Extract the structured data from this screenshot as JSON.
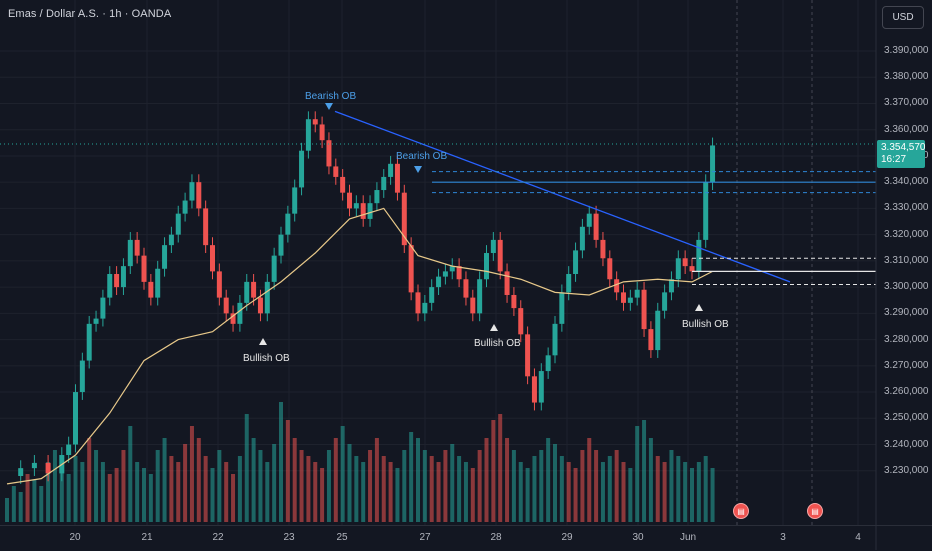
{
  "header": {
    "title": "Emas / Dollar A.S. · 1h · OANDA",
    "currency_button": "USD"
  },
  "price_tag": {
    "price": "3.354,570",
    "countdown": "16:27"
  },
  "annotations": {
    "bearish_ob_1": "Bearish OB",
    "bearish_ob_2": "Bearish OB",
    "bullish_ob_1": "Bullish OB",
    "bullish_ob_2": "Bullish OB",
    "bullish_ob_3": "Bullish OB"
  },
  "events": [
    "us-flag-icon",
    "us-flag-icon"
  ],
  "colors": {
    "up": "#26a69a",
    "down": "#ef5350",
    "trendline": "#2962ff",
    "ma": "#e8c98a",
    "background": "#131722"
  },
  "chart_data": {
    "type": "candlestick",
    "symbol": "XAUUSD",
    "interval": "1h",
    "y_ticks": [
      "3.390,000",
      "3.380,000",
      "3.370,000",
      "3.360,000",
      "3.350,000",
      "3.340,000",
      "3.330,000",
      "3.320,000",
      "3.310,000",
      "3.300,000",
      "3.290,000",
      "3.280,000",
      "3.270,000",
      "3.260,000",
      "3.250,000",
      "3.240,000",
      "3.230,000"
    ],
    "x_ticks": [
      "20",
      "21",
      "22",
      "23",
      "25",
      "27",
      "28",
      "29",
      "30",
      "Jun",
      "3",
      "4"
    ],
    "ylim": [
      3225,
      3395
    ],
    "close_path": [
      [
        0,
        3228
      ],
      [
        2,
        3231
      ],
      [
        4,
        3233
      ],
      [
        6,
        3229
      ],
      [
        8,
        3236
      ],
      [
        9,
        3240
      ],
      [
        10,
        3260
      ],
      [
        11,
        3272
      ],
      [
        12,
        3286
      ],
      [
        13,
        3288
      ],
      [
        14,
        3296
      ],
      [
        15,
        3305
      ],
      [
        16,
        3300
      ],
      [
        17,
        3308
      ],
      [
        18,
        3318
      ],
      [
        19,
        3312
      ],
      [
        20,
        3302
      ],
      [
        21,
        3296
      ],
      [
        22,
        3307
      ],
      [
        23,
        3316
      ],
      [
        24,
        3320
      ],
      [
        25,
        3328
      ],
      [
        26,
        3333
      ],
      [
        27,
        3340
      ],
      [
        28,
        3330
      ],
      [
        29,
        3316
      ],
      [
        30,
        3306
      ],
      [
        31,
        3296
      ],
      [
        32,
        3290
      ],
      [
        33,
        3286
      ],
      [
        34,
        3294
      ],
      [
        35,
        3302
      ],
      [
        36,
        3296
      ],
      [
        37,
        3290
      ],
      [
        38,
        3302
      ],
      [
        39,
        3312
      ],
      [
        40,
        3320
      ],
      [
        41,
        3328
      ],
      [
        42,
        3338
      ],
      [
        43,
        3352
      ],
      [
        44,
        3364
      ],
      [
        45,
        3362
      ],
      [
        46,
        3356
      ],
      [
        47,
        3346
      ],
      [
        48,
        3342
      ],
      [
        49,
        3336
      ],
      [
        50,
        3330
      ],
      [
        51,
        3332
      ],
      [
        52,
        3326
      ],
      [
        53,
        3332
      ],
      [
        54,
        3337
      ],
      [
        55,
        3342
      ],
      [
        56,
        3347
      ],
      [
        57,
        3336
      ],
      [
        58,
        3316
      ],
      [
        59,
        3298
      ],
      [
        60,
        3290
      ],
      [
        61,
        3294
      ],
      [
        62,
        3300
      ],
      [
        63,
        3304
      ],
      [
        64,
        3306
      ],
      [
        65,
        3308
      ],
      [
        66,
        3303
      ],
      [
        67,
        3296
      ],
      [
        68,
        3290
      ],
      [
        69,
        3303
      ],
      [
        70,
        3313
      ],
      [
        71,
        3318
      ],
      [
        72,
        3306
      ],
      [
        73,
        3297
      ],
      [
        74,
        3292
      ],
      [
        75,
        3282
      ],
      [
        76,
        3266
      ],
      [
        77,
        3256
      ],
      [
        78,
        3268
      ],
      [
        79,
        3274
      ],
      [
        80,
        3286
      ],
      [
        81,
        3298
      ],
      [
        82,
        3305
      ],
      [
        83,
        3314
      ],
      [
        84,
        3323
      ],
      [
        85,
        3328
      ],
      [
        86,
        3318
      ],
      [
        87,
        3311
      ],
      [
        88,
        3303
      ],
      [
        89,
        3298
      ],
      [
        90,
        3294
      ],
      [
        91,
        3296
      ],
      [
        92,
        3299
      ],
      [
        93,
        3284
      ],
      [
        94,
        3276
      ],
      [
        95,
        3291
      ],
      [
        96,
        3298
      ],
      [
        97,
        3303
      ],
      [
        98,
        3311
      ],
      [
        99,
        3308
      ],
      [
        100,
        3306
      ],
      [
        101,
        3318
      ],
      [
        102,
        3340
      ],
      [
        103,
        3354
      ]
    ],
    "ma_path": [
      [
        0,
        3225
      ],
      [
        5,
        3227
      ],
      [
        10,
        3236
      ],
      [
        15,
        3252
      ],
      [
        20,
        3272
      ],
      [
        25,
        3280
      ],
      [
        30,
        3283
      ],
      [
        35,
        3293
      ],
      [
        40,
        3302
      ],
      [
        45,
        3313
      ],
      [
        50,
        3326
      ],
      [
        55,
        3330
      ],
      [
        60,
        3312
      ],
      [
        65,
        3308
      ],
      [
        70,
        3306
      ],
      [
        75,
        3303
      ],
      [
        80,
        3298
      ],
      [
        85,
        3297
      ],
      [
        90,
        3302
      ],
      [
        95,
        3303
      ],
      [
        100,
        3302
      ],
      [
        103,
        3306
      ]
    ],
    "volume_relative": [
      0.2,
      0.3,
      0.25,
      0.4,
      0.35,
      0.3,
      0.5,
      0.6,
      0.45,
      0.4,
      0.55,
      0.5,
      0.7,
      0.6,
      0.5,
      0.4,
      0.45,
      0.6,
      0.8,
      0.5,
      0.45,
      0.4,
      0.6,
      0.7,
      0.55,
      0.5,
      0.65,
      0.8,
      0.7,
      0.55,
      0.45,
      0.6,
      0.5,
      0.4,
      0.55,
      0.9,
      0.7,
      0.6,
      0.5,
      0.65,
      1.0,
      0.85,
      0.7,
      0.6,
      0.55,
      0.5,
      0.45,
      0.6,
      0.7,
      0.8,
      0.65,
      0.55,
      0.5,
      0.6,
      0.7,
      0.55,
      0.5,
      0.45,
      0.6,
      0.75,
      0.7,
      0.6,
      0.55,
      0.5,
      0.6,
      0.65,
      0.55,
      0.5,
      0.45,
      0.6,
      0.7,
      0.85,
      0.9,
      0.7,
      0.6,
      0.5,
      0.45,
      0.55,
      0.6,
      0.7,
      0.65,
      0.55,
      0.5,
      0.45,
      0.6,
      0.7,
      0.6,
      0.5,
      0.55,
      0.6,
      0.5,
      0.45,
      0.8,
      0.85,
      0.7,
      0.55,
      0.5,
      0.6,
      0.55,
      0.5,
      0.45,
      0.5,
      0.55,
      0.45
    ],
    "trendline": [
      [
        3367,
        "24.6"
      ],
      [
        3303,
        "Jun 1.9"
      ]
    ],
    "levels": {
      "solid_blue": 3340,
      "dashed_blue": [
        3344,
        3336
      ],
      "white_solid": 3306,
      "white_dashed": [
        3311,
        3301
      ]
    },
    "grid": true
  }
}
